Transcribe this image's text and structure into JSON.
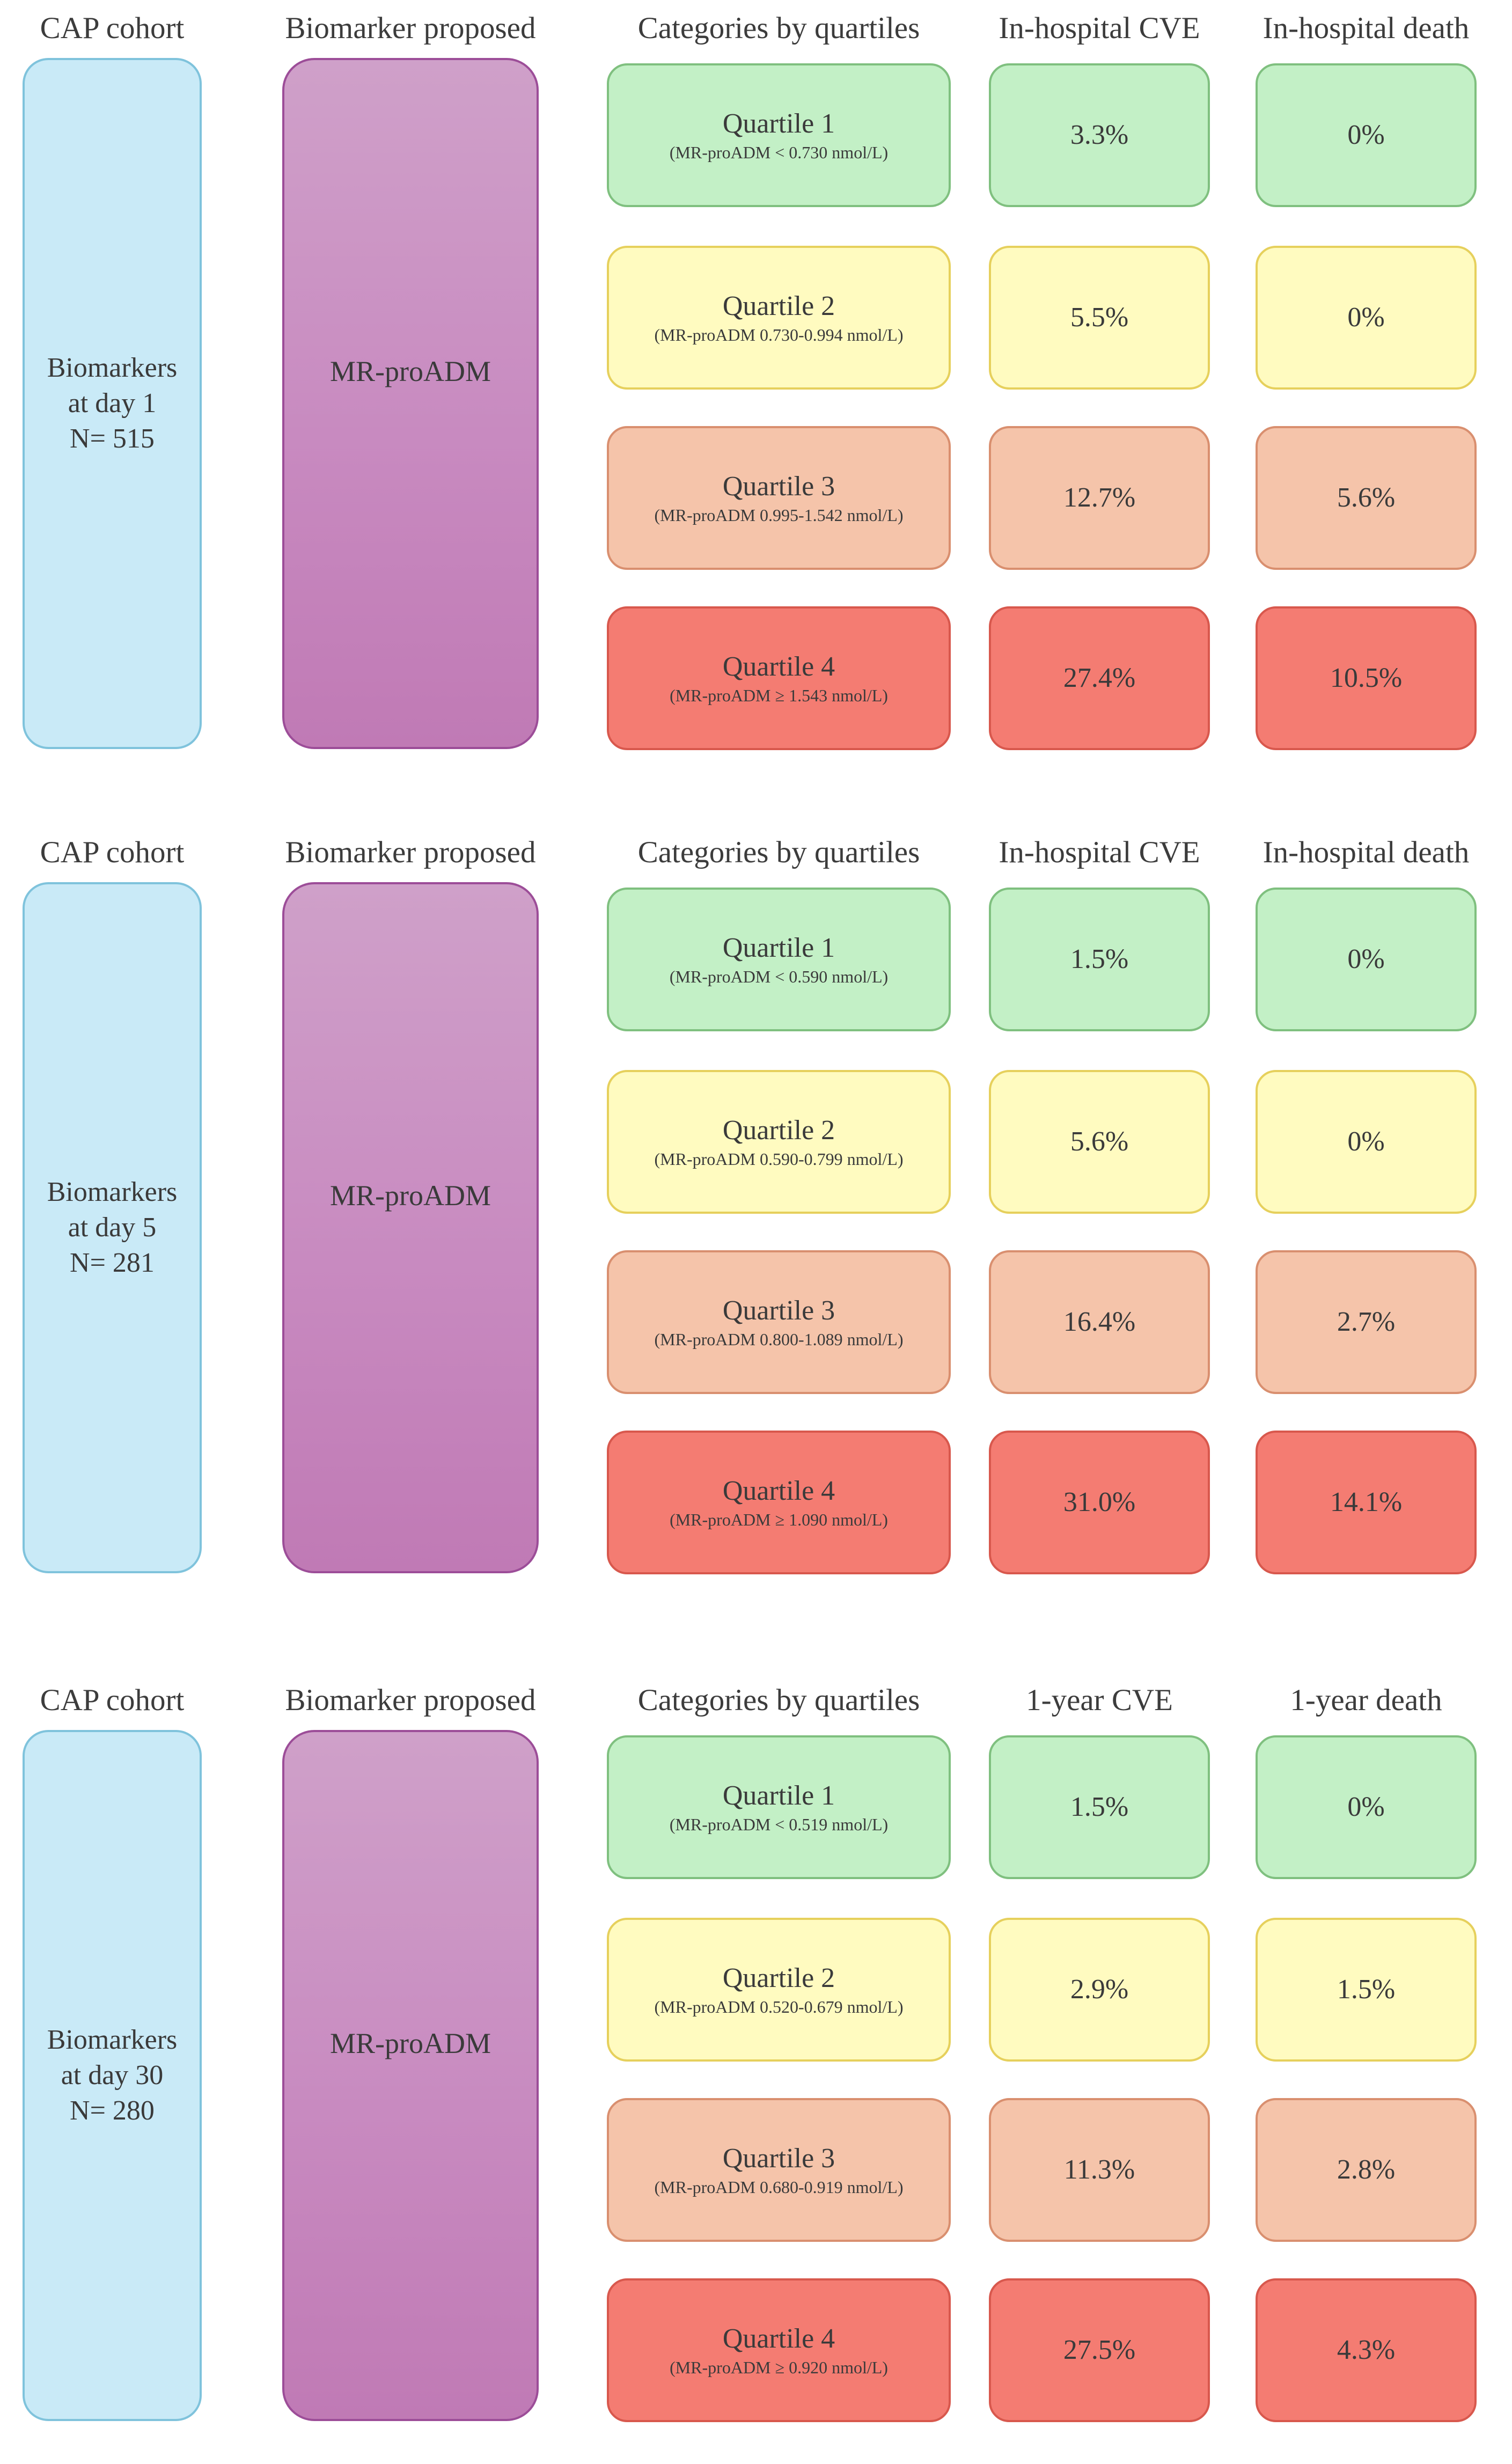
{
  "panels": [
    {
      "headers": {
        "cohort": "CAP cohort",
        "biomarker": "Biomarker proposed",
        "categories": "Categories by quartiles",
        "outcome1": "In-hospital CVE",
        "outcome2": "In-hospital death"
      },
      "cohort": {
        "line1": "Biomarkers",
        "line2": "at day 1",
        "line3": "N= 515"
      },
      "biomarker": "MR-proADM",
      "quartiles": [
        {
          "name": "Quartile 1",
          "range": "(MR-proADM < 0.730 nmol/L)",
          "outcome1": "3.3%",
          "outcome2": "0%"
        },
        {
          "name": "Quartile 2",
          "range": "(MR-proADM 0.730-0.994 nmol/L)",
          "outcome1": "5.5%",
          "outcome2": "0%"
        },
        {
          "name": "Quartile 3",
          "range": "(MR-proADM 0.995-1.542 nmol/L)",
          "outcome1": "12.7%",
          "outcome2": "5.6%"
        },
        {
          "name": "Quartile 4",
          "range": "(MR-proADM ≥ 1.543 nmol/L)",
          "outcome1": "27.4%",
          "outcome2": "10.5%"
        }
      ]
    },
    {
      "headers": {
        "cohort": "CAP cohort",
        "biomarker": "Biomarker proposed",
        "categories": "Categories by quartiles",
        "outcome1": "In-hospital CVE",
        "outcome2": "In-hospital death"
      },
      "cohort": {
        "line1": "Biomarkers",
        "line2": "at day 5",
        "line3": "N= 281"
      },
      "biomarker": "MR-proADM",
      "quartiles": [
        {
          "name": "Quartile 1",
          "range": "(MR-proADM < 0.590 nmol/L)",
          "outcome1": "1.5%",
          "outcome2": "0%"
        },
        {
          "name": "Quartile 2",
          "range": "(MR-proADM 0.590-0.799 nmol/L)",
          "outcome1": "5.6%",
          "outcome2": "0%"
        },
        {
          "name": "Quartile 3",
          "range": "(MR-proADM 0.800-1.089 nmol/L)",
          "outcome1": "16.4%",
          "outcome2": "2.7%"
        },
        {
          "name": "Quartile 4",
          "range": "(MR-proADM ≥ 1.090 nmol/L)",
          "outcome1": "31.0%",
          "outcome2": "14.1%"
        }
      ]
    },
    {
      "headers": {
        "cohort": "CAP cohort",
        "biomarker": "Biomarker proposed",
        "categories": "Categories by quartiles",
        "outcome1": "1-year CVE",
        "outcome2": "1-year death"
      },
      "cohort": {
        "line1": "Biomarkers",
        "line2": "at day 30",
        "line3": "N= 280"
      },
      "biomarker": "MR-proADM",
      "quartiles": [
        {
          "name": "Quartile 1",
          "range": "(MR-proADM < 0.519 nmol/L)",
          "outcome1": "1.5%",
          "outcome2": "0%"
        },
        {
          "name": "Quartile 2",
          "range": "(MR-proADM 0.520-0.679 nmol/L)",
          "outcome1": "2.9%",
          "outcome2": "1.5%"
        },
        {
          "name": "Quartile 3",
          "range": "(MR-proADM 0.680-0.919 nmol/L)",
          "outcome1": "11.3%",
          "outcome2": "2.8%"
        },
        {
          "name": "Quartile 4",
          "range": "(MR-proADM ≥ 0.920 nmol/L)",
          "outcome1": "27.5%",
          "outcome2": "4.3%"
        }
      ]
    }
  ]
}
